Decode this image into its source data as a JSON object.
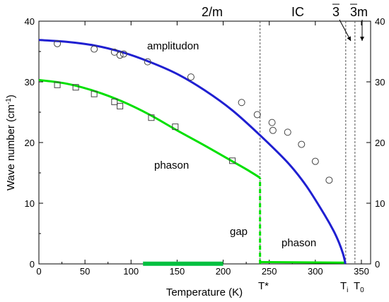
{
  "chart_data": {
    "type": "line",
    "xlabel": "Temperature (K)",
    "ylabel": "Wave number (cm",
    "ylabel_sup": "-1",
    "ylabel_tail": ")",
    "xlim": [
      0,
      360
    ],
    "ylim": [
      0,
      40
    ],
    "x_ticks": [
      0,
      50,
      100,
      150,
      200,
      250,
      300,
      350
    ],
    "y_ticks": [
      0,
      10,
      20,
      30,
      40
    ],
    "right_axis_ticks": [
      0,
      10,
      20,
      30,
      40
    ],
    "grid": false,
    "series": [
      {
        "marker": "circle",
        "color": "#1f1fd1",
        "points": [
          [
            20,
            36.3
          ],
          [
            60,
            35.4
          ],
          [
            82,
            34.9
          ],
          [
            88,
            34.4
          ],
          [
            92,
            34.6
          ],
          [
            118,
            33.3
          ],
          [
            165,
            30.8
          ],
          [
            220,
            26.6
          ],
          [
            237,
            24.6
          ],
          [
            253,
            23.3
          ],
          [
            254,
            22.0
          ],
          [
            270,
            21.7
          ],
          [
            285,
            19.7
          ],
          [
            300,
            16.9
          ],
          [
            315,
            13.8
          ]
        ],
        "fit": [
          [
            0,
            36.9
          ],
          [
            30,
            36.6
          ],
          [
            60,
            36.0
          ],
          [
            90,
            34.9
          ],
          [
            120,
            33.3
          ],
          [
            150,
            31.3
          ],
          [
            180,
            28.6
          ],
          [
            210,
            25.3
          ],
          [
            240,
            21.2
          ],
          [
            270,
            16.7
          ],
          [
            290,
            12.9
          ],
          [
            310,
            8.1
          ],
          [
            320,
            5.4
          ],
          [
            326,
            3.4
          ],
          [
            330,
            1.7
          ],
          [
            332,
            0.5
          ],
          [
            332.5,
            0
          ]
        ]
      },
      {
        "marker": "square",
        "color": "#00e000",
        "points": [
          [
            20,
            29.5
          ],
          [
            40,
            29.1
          ],
          [
            60,
            28.0
          ],
          [
            82,
            26.7
          ],
          [
            88,
            26.0
          ],
          [
            122,
            24.1
          ],
          [
            148,
            22.6
          ],
          [
            210,
            17.0
          ]
        ],
        "fit": [
          [
            0,
            30.3
          ],
          [
            30,
            29.7
          ],
          [
            60,
            28.5
          ],
          [
            90,
            26.8
          ],
          [
            120,
            24.6
          ],
          [
            150,
            22.0
          ],
          [
            180,
            19.5
          ],
          [
            210,
            16.9
          ],
          [
            225,
            15.6
          ],
          [
            240,
            14.2
          ]
        ]
      }
    ],
    "gap_segment": {
      "x": 240,
      "y": [
        0,
        14.2
      ]
    },
    "low_phason": {
      "x": [
        240,
        332
      ],
      "y0": 0.3,
      "y1": 0.2
    },
    "thick_bar": {
      "x": [
        113,
        200
      ],
      "y": 0.15
    },
    "vlines": [
      240,
      333,
      343
    ],
    "annotations": {
      "amplitudon": "amplitudon",
      "phason_upper": "phason",
      "phason_lower": "phason",
      "gap": "gap",
      "phase_2m": "2/m",
      "phase_ic": "IC",
      "phase_3bar_a": "3",
      "phase_3bar_b": "3m",
      "t_star": "T*",
      "t_i": "T",
      "t_i_sub": "i",
      "t_0": "T",
      "t_0_sub": "0"
    }
  }
}
